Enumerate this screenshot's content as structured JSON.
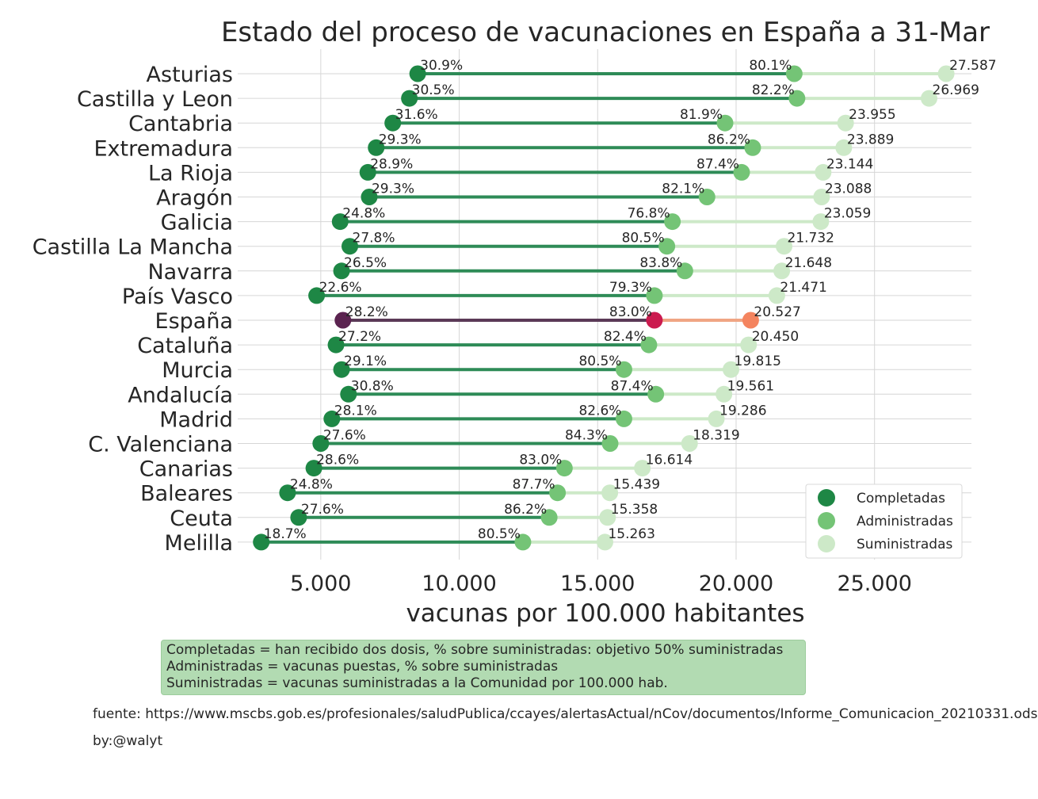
{
  "chart_data": {
    "type": "dumbbell",
    "title": "Estado del proceso de vacunaciones en España a 31-Mar",
    "xlabel": "vacunas por 100.000 habitantes",
    "xlim": [
      2000,
      28500
    ],
    "xticks": [
      5000,
      10000,
      15000,
      20000,
      25000
    ],
    "xtick_labels": [
      "5.000",
      "10.000",
      "15.000",
      "20.000",
      "25.000"
    ],
    "grid": true,
    "legend_position": "lower-right",
    "highlight_region": "España",
    "series": [
      {
        "name": "Completadas",
        "color": "#1e8745"
      },
      {
        "name": "Administradas",
        "color": "#74c476"
      },
      {
        "name": "Suministradas",
        "color": "#cde9c8"
      }
    ],
    "highlight_colors": {
      "completadas": "#5b2350",
      "administradas": "#cb1b4f",
      "suministradas": "#f4845f",
      "label": "#ff0000",
      "line_done": "#5b3a57",
      "line_rest": "#f0a584"
    },
    "line_colors": {
      "done": "#2e8b57",
      "rest": "#cde9c8"
    },
    "regions": [
      {
        "name": "Asturias",
        "completadas": 8500,
        "administradas": 22100,
        "suministradas": 27587,
        "pct_completadas": "30.9%",
        "pct_administradas": "80.1%",
        "sum_label": "27.587"
      },
      {
        "name": "Castilla y Leon",
        "completadas": 8200,
        "administradas": 22200,
        "suministradas": 26969,
        "pct_completadas": "30.5%",
        "pct_administradas": "82.2%",
        "sum_label": "26.969"
      },
      {
        "name": "Cantabria",
        "completadas": 7600,
        "administradas": 19600,
        "suministradas": 23955,
        "pct_completadas": "31.6%",
        "pct_administradas": "81.9%",
        "sum_label": "23.955"
      },
      {
        "name": "Extremadura",
        "completadas": 7000,
        "administradas": 20600,
        "suministradas": 23889,
        "pct_completadas": "29.3%",
        "pct_administradas": "86.2%",
        "sum_label": "23.889"
      },
      {
        "name": "La Rioja",
        "completadas": 6700,
        "administradas": 20200,
        "suministradas": 23144,
        "pct_completadas": "28.9%",
        "pct_administradas": "87.4%",
        "sum_label": "23.144"
      },
      {
        "name": "Aragón",
        "completadas": 6750,
        "administradas": 18950,
        "suministradas": 23088,
        "pct_completadas": "29.3%",
        "pct_administradas": "82.1%",
        "sum_label": "23.088"
      },
      {
        "name": "Galicia",
        "completadas": 5700,
        "administradas": 17700,
        "suministradas": 23059,
        "pct_completadas": "24.8%",
        "pct_administradas": "76.8%",
        "sum_label": "23.059"
      },
      {
        "name": "Castilla La Mancha",
        "completadas": 6050,
        "administradas": 17500,
        "suministradas": 21732,
        "pct_completadas": "27.8%",
        "pct_administradas": "80.5%",
        "sum_label": "21.732"
      },
      {
        "name": "Navarra",
        "completadas": 5750,
        "administradas": 18150,
        "suministradas": 21648,
        "pct_completadas": "26.5%",
        "pct_administradas": "83.8%",
        "sum_label": "21.648"
      },
      {
        "name": "País Vasco",
        "completadas": 4850,
        "administradas": 17050,
        "suministradas": 21471,
        "pct_completadas": "22.6%",
        "pct_administradas": "79.3%",
        "sum_label": "21.471"
      },
      {
        "name": "España",
        "completadas": 5800,
        "administradas": 17050,
        "suministradas": 20527,
        "pct_completadas": "28.2%",
        "pct_administradas": "83.0%",
        "sum_label": "20.527"
      },
      {
        "name": "Cataluña",
        "completadas": 5550,
        "administradas": 16850,
        "suministradas": 20450,
        "pct_completadas": "27.2%",
        "pct_administradas": "82.4%",
        "sum_label": "20.450"
      },
      {
        "name": "Murcia",
        "completadas": 5750,
        "administradas": 15950,
        "suministradas": 19815,
        "pct_completadas": "29.1%",
        "pct_administradas": "80.5%",
        "sum_label": "19.815"
      },
      {
        "name": "Andalucía",
        "completadas": 6000,
        "administradas": 17100,
        "suministradas": 19561,
        "pct_completadas": "30.8%",
        "pct_administradas": "87.4%",
        "sum_label": "19.561"
      },
      {
        "name": "Madrid",
        "completadas": 5400,
        "administradas": 15950,
        "suministradas": 19286,
        "pct_completadas": "28.1%",
        "pct_administradas": "82.6%",
        "sum_label": "19.286"
      },
      {
        "name": "C. Valenciana",
        "completadas": 5000,
        "administradas": 15450,
        "suministradas": 18319,
        "pct_completadas": "27.6%",
        "pct_administradas": "84.3%",
        "sum_label": "18.319"
      },
      {
        "name": "Canarias",
        "completadas": 4750,
        "administradas": 13800,
        "suministradas": 16614,
        "pct_completadas": "28.6%",
        "pct_administradas": "83.0%",
        "sum_label": "16.614"
      },
      {
        "name": "Baleares",
        "completadas": 3800,
        "administradas": 13550,
        "suministradas": 15439,
        "pct_completadas": "24.8%",
        "pct_administradas": "87.7%",
        "sum_label": "15.439"
      },
      {
        "name": "Ceuta",
        "completadas": 4200,
        "administradas": 13250,
        "suministradas": 15358,
        "pct_completadas": "27.6%",
        "pct_administradas": "86.2%",
        "sum_label": "15.358"
      },
      {
        "name": "Melilla",
        "completadas": 2850,
        "administradas": 12300,
        "suministradas": 15263,
        "pct_completadas": "18.7%",
        "pct_administradas": "80.5%",
        "sum_label": "15.263"
      }
    ]
  },
  "notes": {
    "line1": "Completadas = han recibido dos dosis, % sobre suministradas: objetivo 50% suministradas",
    "line2": "Administradas = vacunas puestas, % sobre suministradas",
    "line3": "Suministradas = vacunas suministradas a la Comunidad por 100.000 hab."
  },
  "source": "fuente: https://www.mscbs.gob.es/profesionales/saludPublica/ccayes/alertasActual/nCov/documentos/Informe_Comunicacion_20210331.ods",
  "byline": "by:@walyt"
}
